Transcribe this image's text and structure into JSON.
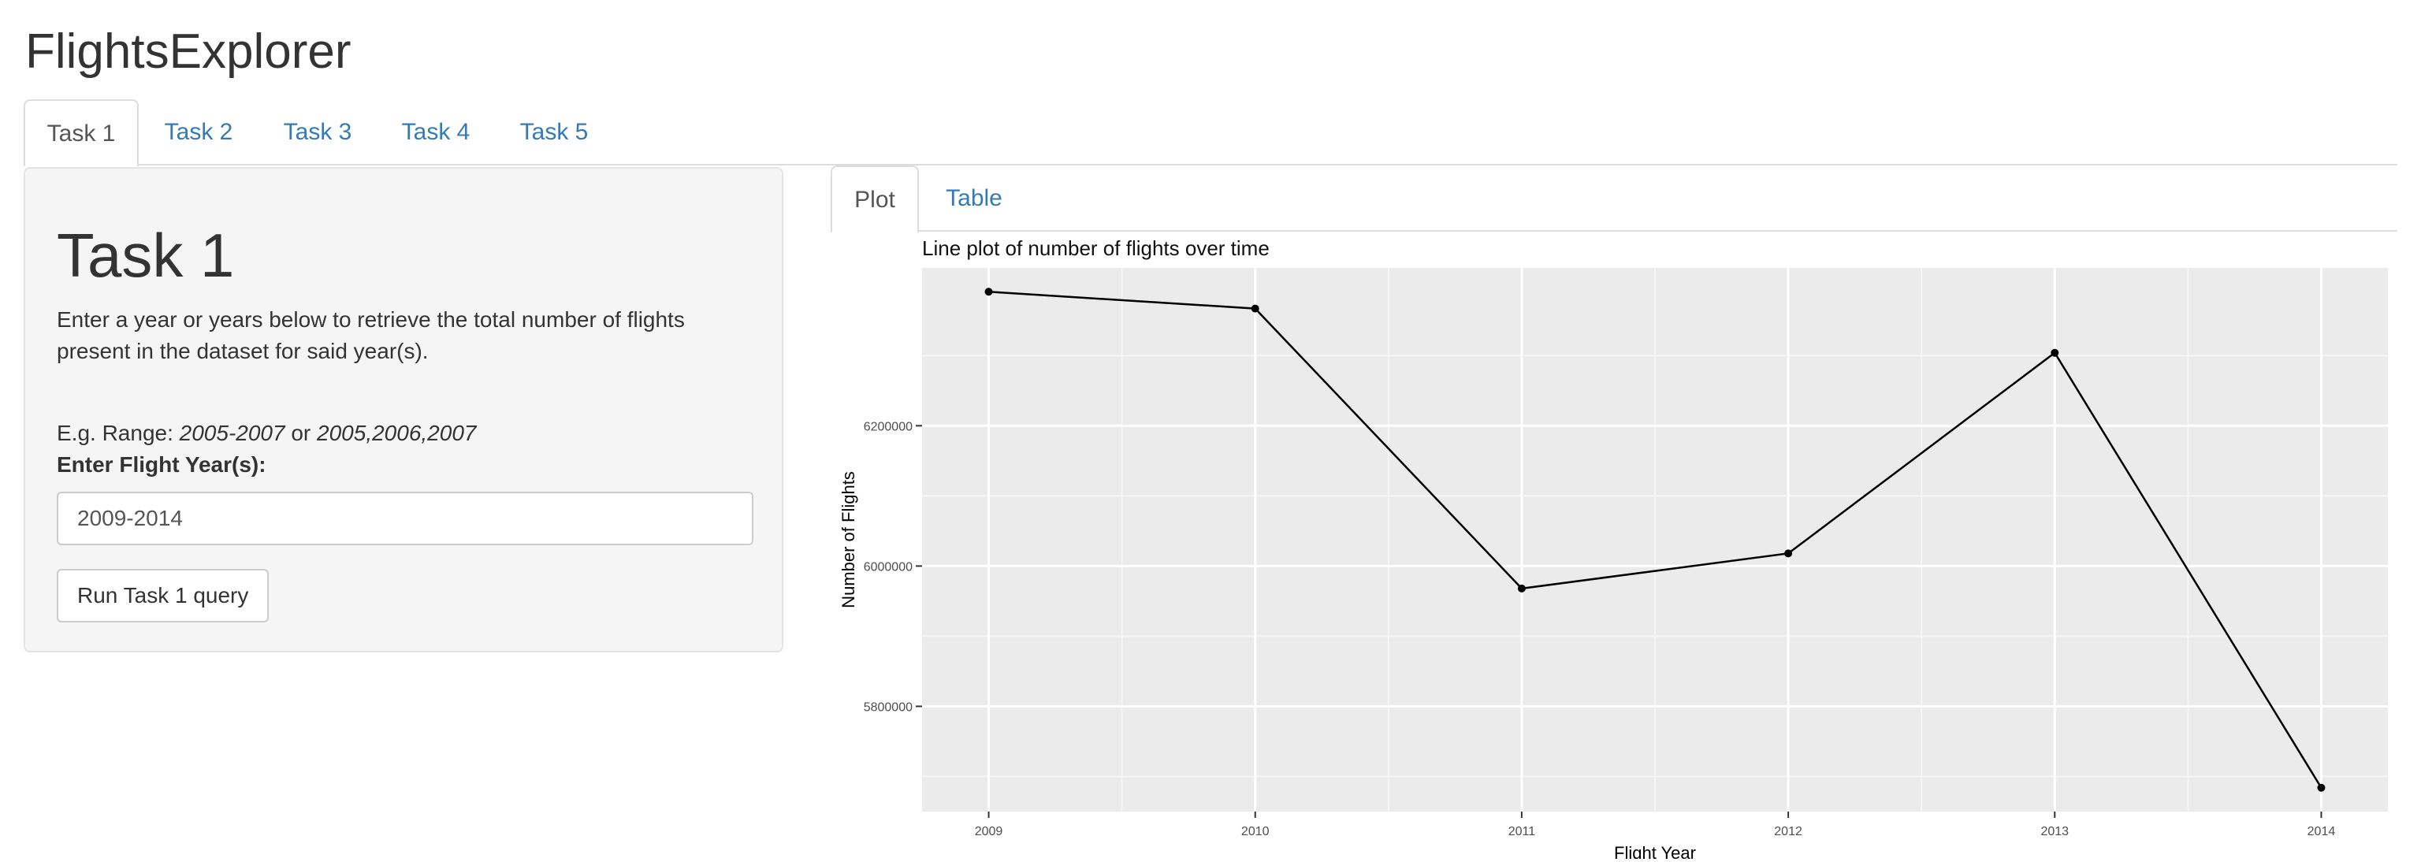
{
  "app": {
    "title": "FlightsExplorer"
  },
  "nav": {
    "tabs": [
      "Task 1",
      "Task 2",
      "Task 3",
      "Task 4",
      "Task 5"
    ],
    "active": 0
  },
  "sidebar": {
    "heading": "Task 1",
    "description": "Enter a year or years below to retrieve the total number of flights present in the dataset for said year(s).",
    "example_prefix": "E.g. Range: ",
    "example_range": "2005-2007",
    "example_or": " or ",
    "example_list": "2005,2006,2007",
    "input_label": "Enter Flight Year(s):",
    "input_value": "2009-2014",
    "run_button": "Run Task 1 query"
  },
  "output_tabs": {
    "tabs": [
      "Plot",
      "Table"
    ],
    "active": 0
  },
  "chart_data": {
    "type": "line",
    "title": "Line plot of number of flights over time",
    "xlabel": "Flight Year",
    "ylabel": "Number of Flights",
    "x": [
      2009,
      2010,
      2011,
      2012,
      2013,
      2014
    ],
    "y": [
      6391000,
      6367000,
      5968000,
      6018000,
      6304000,
      5684000
    ],
    "xlim": [
      2008.75,
      2014.25
    ],
    "ylim": [
      5650000,
      6425000
    ],
    "yticks": [
      5800000,
      6000000,
      6200000
    ],
    "ytick_labels": [
      "5800000",
      "6000000",
      "6200000"
    ],
    "xtick_labels": [
      "2009",
      "2010",
      "2011",
      "2012",
      "2013",
      "2014"
    ],
    "grid": true,
    "colors": {
      "panel": "#ebebeb",
      "grid_major": "#ffffff",
      "grid_minor": "#f5f5f5",
      "line": "#000000"
    }
  }
}
